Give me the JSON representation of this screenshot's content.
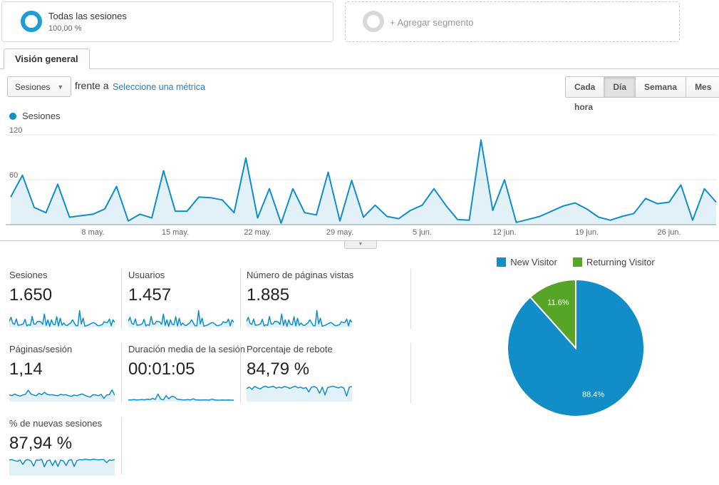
{
  "segments": {
    "all_sessions": {
      "title": "Todas las sesiones",
      "percent": "100,00 %"
    },
    "add_segment_label": "+ Agregar segmento"
  },
  "tab": {
    "label": "Visión general"
  },
  "toolbar": {
    "metric_dropdown_value": "Sesiones",
    "vs_label": "frente a",
    "select_metric_link": "Seleccione una métrica",
    "granularity": [
      {
        "label": "Cada hora",
        "active": false
      },
      {
        "label": "Día",
        "active": true
      },
      {
        "label": "Semana",
        "active": false
      },
      {
        "label": "Mes",
        "active": false
      }
    ]
  },
  "colors": {
    "chart_blue": "#118dc8",
    "pie_green": "#56a526",
    "link_blue": "#2b7abf",
    "area_fill": "rgba(17,141,200,0.12)"
  },
  "chart_data": [
    {
      "type": "area",
      "legend": "Sesiones",
      "ylim": [
        0,
        120
      ],
      "yticks": [
        60,
        120
      ],
      "grid": true,
      "x_tick_labels": [
        "8 may.",
        "15 may.",
        "22 may.",
        "29 may.",
        "5 jun.",
        "12 jun.",
        "19 jun.",
        "26 jun."
      ],
      "x_tick_day_index": [
        7,
        14,
        21,
        28,
        35,
        42,
        49,
        56
      ],
      "series": [
        {
          "name": "Sesiones",
          "values": [
            37,
            66,
            23,
            16,
            54,
            10,
            12,
            14,
            21,
            51,
            5,
            14,
            9,
            72,
            18,
            18,
            37,
            36,
            33,
            16,
            89,
            9,
            48,
            2,
            48,
            16,
            13,
            70,
            5,
            59,
            10,
            26,
            11,
            8,
            19,
            26,
            48,
            26,
            7,
            6,
            113,
            19,
            60,
            3,
            7,
            11,
            18,
            25,
            29,
            21,
            10,
            6,
            11,
            15,
            35,
            28,
            30,
            53,
            6,
            48,
            30
          ]
        }
      ]
    },
    {
      "type": "pie",
      "legend_position": "top",
      "slices": [
        {
          "name": "New Visitor",
          "value": 88.4,
          "label": "88.4%",
          "color": "#118dc8"
        },
        {
          "name": "Returning Visitor",
          "value": 11.6,
          "label": "11.6%",
          "color": "#56a526"
        }
      ]
    }
  ],
  "metrics": [
    {
      "label": "Sesiones",
      "value": "1.650",
      "spark": "main"
    },
    {
      "label": "Usuarios",
      "value": "1.457",
      "spark": "main"
    },
    {
      "label": "Número de páginas vistas",
      "value": "1.885",
      "spark": "main"
    },
    {
      "label": "Páginas/sesión",
      "value": "1,14",
      "spark": "paginas"
    },
    {
      "label": "Duración media de la sesión",
      "value": "00:01:05",
      "spark": "duracion"
    },
    {
      "label": "Porcentaje de rebote",
      "value": "84,79 %",
      "spark": "rebote"
    },
    {
      "label": "% de nuevas sesiones",
      "value": "87,94 %",
      "spark": "nuevas"
    }
  ],
  "sparklines": {
    "paginas": [
      35,
      30,
      40,
      32,
      28,
      34,
      38,
      62,
      40,
      34,
      30,
      44,
      36,
      50,
      38,
      34,
      36,
      32,
      30,
      38,
      34,
      36,
      30,
      26,
      34,
      30,
      36,
      40,
      32,
      26,
      22,
      36,
      34,
      30,
      38,
      14,
      34,
      36,
      64,
      32
    ],
    "duracion": [
      6,
      5,
      7,
      5,
      6,
      8,
      6,
      10,
      7,
      14,
      8,
      40,
      10,
      6,
      30,
      12,
      26,
      24,
      10,
      8,
      6,
      5,
      7,
      5,
      12,
      5,
      6,
      4,
      6,
      5,
      4,
      10,
      5,
      4,
      4,
      5,
      4,
      5,
      4,
      4
    ],
    "rebote": [
      72,
      80,
      68,
      84,
      76,
      70,
      80,
      86,
      78,
      82,
      84,
      74,
      80,
      76,
      84,
      80,
      72,
      80,
      86,
      76,
      80,
      72,
      78,
      52,
      80,
      84,
      76,
      44,
      80,
      34,
      78,
      82,
      86,
      80,
      76,
      82,
      74,
      28,
      80,
      84
    ],
    "nuevas": [
      88,
      90,
      84,
      80,
      88,
      62,
      86,
      90,
      82,
      52,
      88,
      86,
      92,
      48,
      82,
      88,
      55,
      86,
      50,
      88,
      82,
      56,
      86,
      90,
      50,
      84,
      90,
      88,
      92,
      90,
      88,
      92,
      90,
      88,
      90,
      90,
      72,
      88,
      86,
      90
    ]
  },
  "icons": {
    "segment_donut": "donut-ring",
    "dropdown_caret": "▼",
    "collapse_chevron": "▼"
  }
}
